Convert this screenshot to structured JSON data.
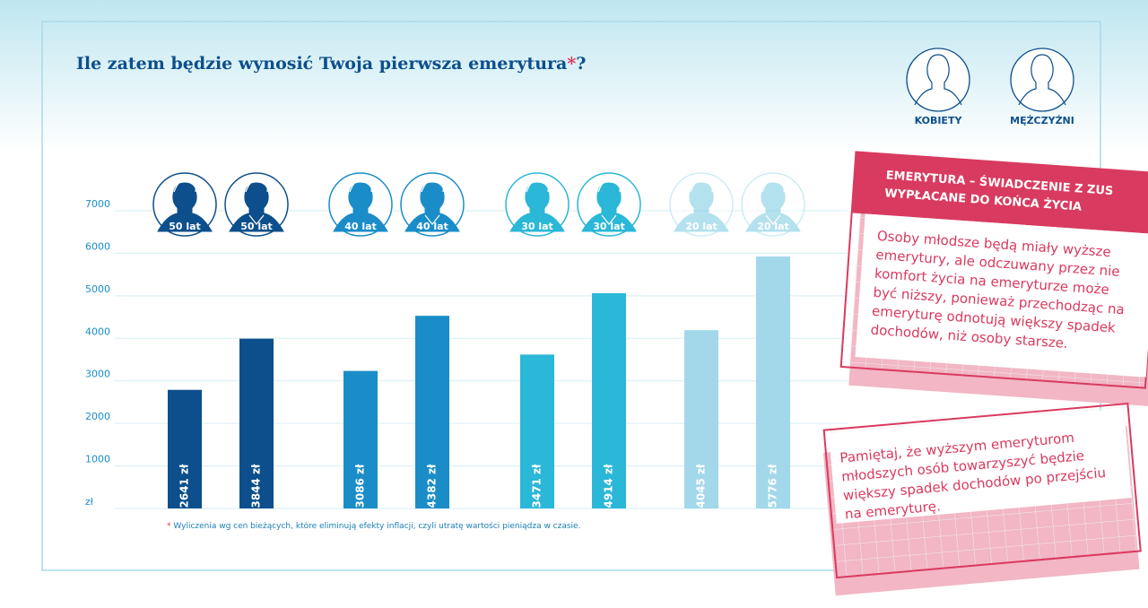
{
  "chart_data": {
    "type": "bar",
    "title": "Ile zatem będzie wynosić Twoja pierwsza emerytura",
    "note_marker": "*",
    "title_end": "?",
    "categories": [
      "50 lat",
      "50 lat",
      "40 lat",
      "40 lat",
      "30 lat",
      "30 lat",
      "20 lat",
      "20 lat"
    ],
    "values": [
      2641,
      3844,
      3086,
      4382,
      3471,
      4914,
      4045,
      5776
    ],
    "value_labels": [
      "2641 zł",
      "3844 zł",
      "3086 zł",
      "4382 zł",
      "3471 zł",
      "4914 zł",
      "4045 zł",
      "5776 zł"
    ],
    "colors": [
      "#0c4f8c",
      "#0c4f8c",
      "#1a8dc8",
      "#1a8dc8",
      "#2bb7d7",
      "#2bb7d7",
      "#a2d8ea",
      "#a2d8ea"
    ],
    "legend": [
      "KOBIETY",
      "MĘŻCZYŹNI"
    ],
    "ylim": [
      0,
      7000
    ],
    "yticks": [
      {
        "value": 0,
        "label": "zł"
      },
      1000,
      2000,
      3000,
      4000,
      5000,
      6000,
      7000
    ],
    "grid": true,
    "footnote": "Wyliczenia wg cen bieżących, które eliminują efekty inflacji, czyli utratę wartości pieniądza w czasie."
  },
  "cards": [
    {
      "title_lines": [
        "EMERYTURA – ŚWIADCZENIE Z ZUS",
        "WYPŁACANE DO KOŃCA ŻYCIA"
      ],
      "lines": [
        "Osoby młodsze będą miały wyższe",
        "emerytury, ale odczuwany przez nie",
        "komfort życia na emeryturze może",
        "być niższy, ponieważ przechodząc na",
        "emeryturę odnotują większy spadek",
        "dochodów, niż osoby starsze."
      ]
    },
    {
      "lines": [
        "Pamiętaj, że wyższym emeryturom",
        "młodszych osób towarzyszyć będzie",
        "większy spadek dochodów po przejściu",
        "na emeryturę."
      ]
    }
  ]
}
